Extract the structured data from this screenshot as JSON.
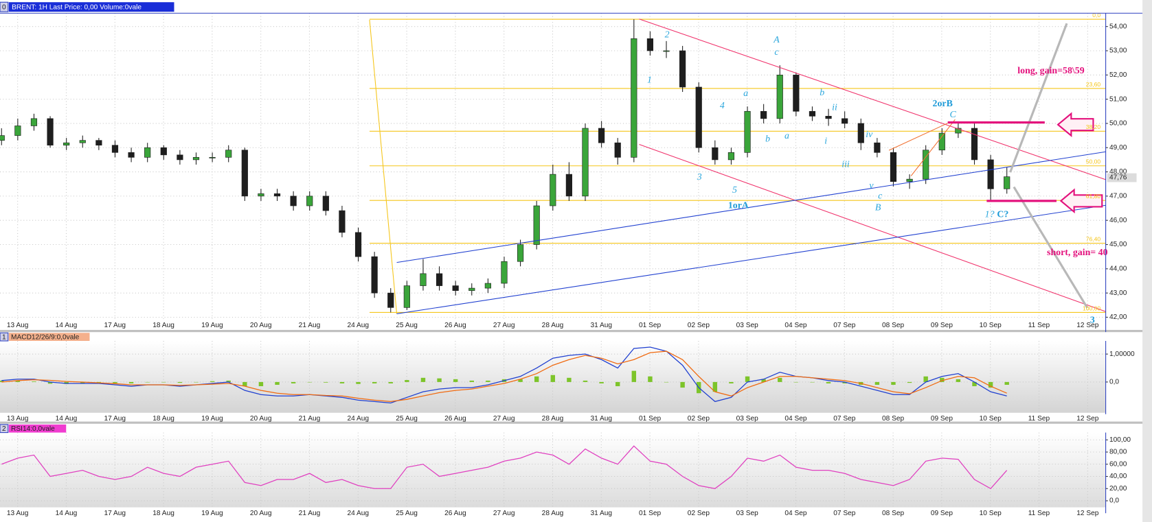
{
  "chart_data": [
    {
      "type": "candlestick",
      "title": "BRENT: 1H Last Price: 0,00 Volume:0vale",
      "panel": "0",
      "categories": [
        "13 Aug",
        "14 Aug",
        "17 Aug",
        "18 Aug",
        "19 Aug",
        "20 Aug",
        "21 Aug",
        "24 Aug",
        "25 Aug",
        "26 Aug",
        "27 Aug",
        "28 Aug",
        "31 Aug",
        "01 Sep",
        "02 Sep",
        "03 Sep",
        "04 Sep",
        "07 Sep",
        "08 Sep",
        "09 Sep",
        "10 Sep",
        "11 Sep",
        "12 Sep"
      ],
      "open": [
        49.3,
        49.5,
        49.9,
        50.2,
        49.1,
        49.2,
        49.3,
        49.1,
        48.8,
        48.6,
        49.0,
        48.7,
        48.5,
        48.6,
        48.6,
        48.9,
        47.0,
        47.1,
        47.0,
        46.6,
        47.0,
        46.4,
        45.5,
        44.5,
        43.0,
        42.4,
        43.3,
        43.8,
        43.3,
        43.1,
        43.2,
        43.4,
        44.3,
        45.0,
        46.6,
        47.9,
        47.0,
        49.8,
        49.2,
        48.6,
        53.5,
        53.0,
        53.0,
        51.5,
        49.0,
        48.5,
        48.8,
        50.5,
        50.2,
        52.0,
        50.5,
        50.3,
        50.2,
        50.0,
        49.2,
        48.8,
        47.6,
        47.7,
        48.9,
        49.6,
        49.8,
        48.5,
        47.3
      ],
      "high": [
        49.8,
        50.2,
        50.4,
        50.3,
        49.4,
        49.5,
        49.4,
        49.3,
        49.0,
        49.2,
        49.1,
        48.9,
        48.8,
        48.8,
        49.1,
        49.0,
        47.3,
        47.3,
        47.2,
        47.2,
        47.2,
        46.6,
        45.7,
        44.7,
        43.2,
        43.5,
        44.4,
        44.1,
        43.5,
        43.4,
        43.6,
        44.5,
        45.2,
        46.8,
        48.3,
        48.4,
        50.0,
        50.1,
        49.4,
        54.3,
        53.8,
        53.4,
        53.2,
        51.7,
        49.3,
        49.0,
        50.7,
        50.8,
        52.4,
        52.1,
        50.7,
        50.6,
        50.5,
        50.2,
        49.4,
        49.0,
        47.9,
        49.1,
        49.8,
        50.0,
        50.0,
        48.7,
        48.2
      ],
      "low": [
        49.1,
        49.3,
        49.7,
        49.0,
        48.9,
        49.0,
        48.9,
        48.6,
        48.4,
        48.4,
        48.5,
        48.3,
        48.3,
        48.4,
        48.4,
        46.8,
        46.8,
        46.8,
        46.4,
        46.4,
        46.2,
        45.3,
        44.3,
        42.8,
        42.2,
        42.3,
        43.1,
        43.1,
        42.9,
        42.9,
        43.0,
        43.2,
        44.1,
        44.8,
        46.4,
        46.8,
        46.8,
        49.0,
        48.3,
        48.4,
        52.8,
        52.7,
        51.3,
        48.8,
        48.3,
        48.3,
        48.6,
        50.0,
        50.0,
        50.3,
        50.1,
        49.9,
        49.8,
        48.9,
        48.6,
        47.4,
        47.3,
        47.5,
        48.7,
        49.4,
        48.3,
        46.8,
        47.1
      ],
      "close": [
        49.5,
        49.9,
        50.2,
        49.1,
        49.2,
        49.3,
        49.1,
        48.8,
        48.6,
        49.0,
        48.7,
        48.5,
        48.6,
        48.6,
        48.9,
        47.0,
        47.1,
        47.0,
        46.6,
        47.0,
        46.4,
        45.5,
        44.5,
        43.0,
        42.4,
        43.3,
        43.8,
        43.3,
        43.1,
        43.2,
        43.4,
        44.3,
        45.0,
        46.6,
        47.9,
        47.0,
        49.8,
        49.2,
        48.6,
        53.5,
        53.0,
        53.0,
        51.5,
        49.0,
        48.5,
        48.8,
        50.5,
        50.2,
        52.0,
        50.5,
        50.3,
        50.2,
        50.0,
        49.2,
        48.8,
        47.6,
        47.7,
        48.9,
        49.6,
        49.8,
        48.5,
        47.3,
        47.8
      ],
      "up_color": "#3aa53a",
      "down_color": "#1e1e1e",
      "ylim": [
        41.9,
        54.55
      ],
      "yticks": [
        {
          "value": 42,
          "label": "42,00"
        },
        {
          "value": 43,
          "label": "43,00"
        },
        {
          "value": 44,
          "label": "44,00"
        },
        {
          "value": 45,
          "label": "45,00"
        },
        {
          "value": 46,
          "label": "46,00"
        },
        {
          "value": 47,
          "label": "47,00"
        },
        {
          "value": 48,
          "label": "48,00"
        },
        {
          "value": 49,
          "label": "49,00"
        },
        {
          "value": 50,
          "label": "50,00"
        },
        {
          "value": 51,
          "label": "51,00"
        },
        {
          "value": 52,
          "label": "52,00"
        },
        {
          "value": 53,
          "label": "53,00"
        },
        {
          "value": 54,
          "label": "54,00"
        }
      ],
      "last_price": {
        "value": 47.76,
        "label": "47,76"
      },
      "fib_range": [
        54.3,
        42.2
      ],
      "fib_color": "#f5c518",
      "fib_levels": [
        {
          "value": 0,
          "label": "0,0"
        },
        {
          "value": 23.6,
          "label": "23,60"
        },
        {
          "value": 38.2,
          "label": "38,20"
        },
        {
          "value": 50,
          "label": "50,00"
        },
        {
          "value": 61.8,
          "label": "61,80"
        },
        {
          "value": 76.4,
          "label": "76,40"
        },
        {
          "value": 100,
          "label": "100,00"
        }
      ],
      "annotations": [
        "1",
        "2",
        "3",
        "4",
        "5",
        "A",
        "c",
        "a",
        "b",
        "a",
        "b",
        "ii",
        "i",
        "iii",
        "iv",
        "v",
        "c",
        "B",
        "1orA",
        "2orB",
        "C",
        "1?",
        "C?",
        "long, gain=58\\59",
        "short, gain=  40",
        "3"
      ],
      "grid": true
    },
    {
      "type": "line",
      "title": "MACD12/26/9:0,0vale",
      "panel": "1",
      "series": [
        {
          "color": "#1f3fd0",
          "values": [
            0.05,
            0.1,
            0.1,
            0.0,
            -0.05,
            -0.05,
            -0.05,
            -0.1,
            -0.15,
            -0.1,
            -0.1,
            -0.15,
            -0.1,
            -0.05,
            0.0,
            -0.3,
            -0.45,
            -0.5,
            -0.5,
            -0.45,
            -0.5,
            -0.55,
            -0.65,
            -0.7,
            -0.75,
            -0.55,
            -0.35,
            -0.25,
            -0.2,
            -0.2,
            -0.1,
            0.05,
            0.2,
            0.5,
            0.85,
            0.95,
            1.0,
            0.8,
            0.5,
            1.2,
            1.25,
            1.1,
            0.6,
            -0.2,
            -0.7,
            -0.55,
            0.0,
            0.1,
            0.35,
            0.2,
            0.15,
            0.05,
            0.0,
            -0.15,
            -0.3,
            -0.45,
            -0.45,
            0.0,
            0.2,
            0.3,
            0.0,
            -0.35,
            -0.5
          ]
        },
        {
          "color": "#f06a10",
          "values": [
            0.0,
            0.05,
            0.08,
            0.06,
            0.02,
            0.0,
            -0.03,
            -0.06,
            -0.1,
            -0.1,
            -0.1,
            -0.12,
            -0.1,
            -0.08,
            -0.05,
            -0.15,
            -0.3,
            -0.4,
            -0.45,
            -0.45,
            -0.48,
            -0.5,
            -0.58,
            -0.65,
            -0.7,
            -0.62,
            -0.5,
            -0.38,
            -0.3,
            -0.25,
            -0.15,
            -0.05,
            0.1,
            0.3,
            0.6,
            0.8,
            0.95,
            0.85,
            0.65,
            0.8,
            1.05,
            1.1,
            0.8,
            0.2,
            -0.35,
            -0.5,
            -0.2,
            0.0,
            0.2,
            0.2,
            0.15,
            0.1,
            0.05,
            -0.05,
            -0.2,
            -0.35,
            -0.42,
            -0.2,
            0.05,
            0.2,
            0.15,
            -0.15,
            -0.4
          ]
        }
      ],
      "histogram": {
        "color": "#7dc42a",
        "values": [
          0.05,
          0.05,
          0.02,
          -0.06,
          -0.07,
          -0.05,
          -0.02,
          -0.04,
          -0.05,
          0,
          0,
          -0.03,
          0,
          0.03,
          0.05,
          -0.15,
          -0.15,
          -0.1,
          -0.05,
          0,
          -0.02,
          -0.05,
          -0.07,
          -0.05,
          -0.05,
          0.07,
          0.15,
          0.13,
          0.1,
          0.05,
          0.05,
          0.1,
          0.1,
          0.2,
          0.25,
          0.15,
          0.05,
          -0.05,
          -0.15,
          0.4,
          0.2,
          0,
          -0.2,
          -0.4,
          -0.35,
          -0.05,
          0.2,
          0.1,
          0.15,
          0,
          0,
          -0.05,
          -0.05,
          -0.1,
          -0.1,
          -0.1,
          -0.03,
          0.2,
          0.15,
          0.1,
          -0.15,
          -0.2,
          -0.1
        ]
      },
      "ylim": [
        -1.1,
        1.47
      ],
      "yticks": [
        {
          "value": 1,
          "label": "1,00000"
        },
        {
          "value": 0,
          "label": "0,0"
        }
      ],
      "grid": true
    },
    {
      "type": "line",
      "title": "RSI14:0,0vale",
      "panel": "2",
      "series": [
        {
          "color": "#e040c0",
          "values": [
            60,
            70,
            75,
            40,
            45,
            50,
            40,
            35,
            40,
            55,
            45,
            40,
            55,
            60,
            65,
            30,
            25,
            35,
            35,
            45,
            30,
            35,
            25,
            20,
            20,
            55,
            60,
            40,
            45,
            50,
            55,
            65,
            70,
            80,
            75,
            60,
            85,
            70,
            60,
            90,
            65,
            60,
            40,
            25,
            20,
            40,
            70,
            65,
            75,
            55,
            50,
            50,
            45,
            35,
            30,
            25,
            35,
            65,
            70,
            68,
            35,
            20,
            50
          ]
        }
      ],
      "ylim": [
        -10.8,
        112
      ],
      "yticks": [
        {
          "value": 0,
          "label": "0,0"
        },
        {
          "value": 20,
          "label": "20,00"
        },
        {
          "value": 40,
          "label": "40,00"
        },
        {
          "value": 60,
          "label": "60,00"
        },
        {
          "value": 80,
          "label": "80,00"
        },
        {
          "value": 100,
          "label": "100,00"
        }
      ],
      "grid": true
    }
  ]
}
